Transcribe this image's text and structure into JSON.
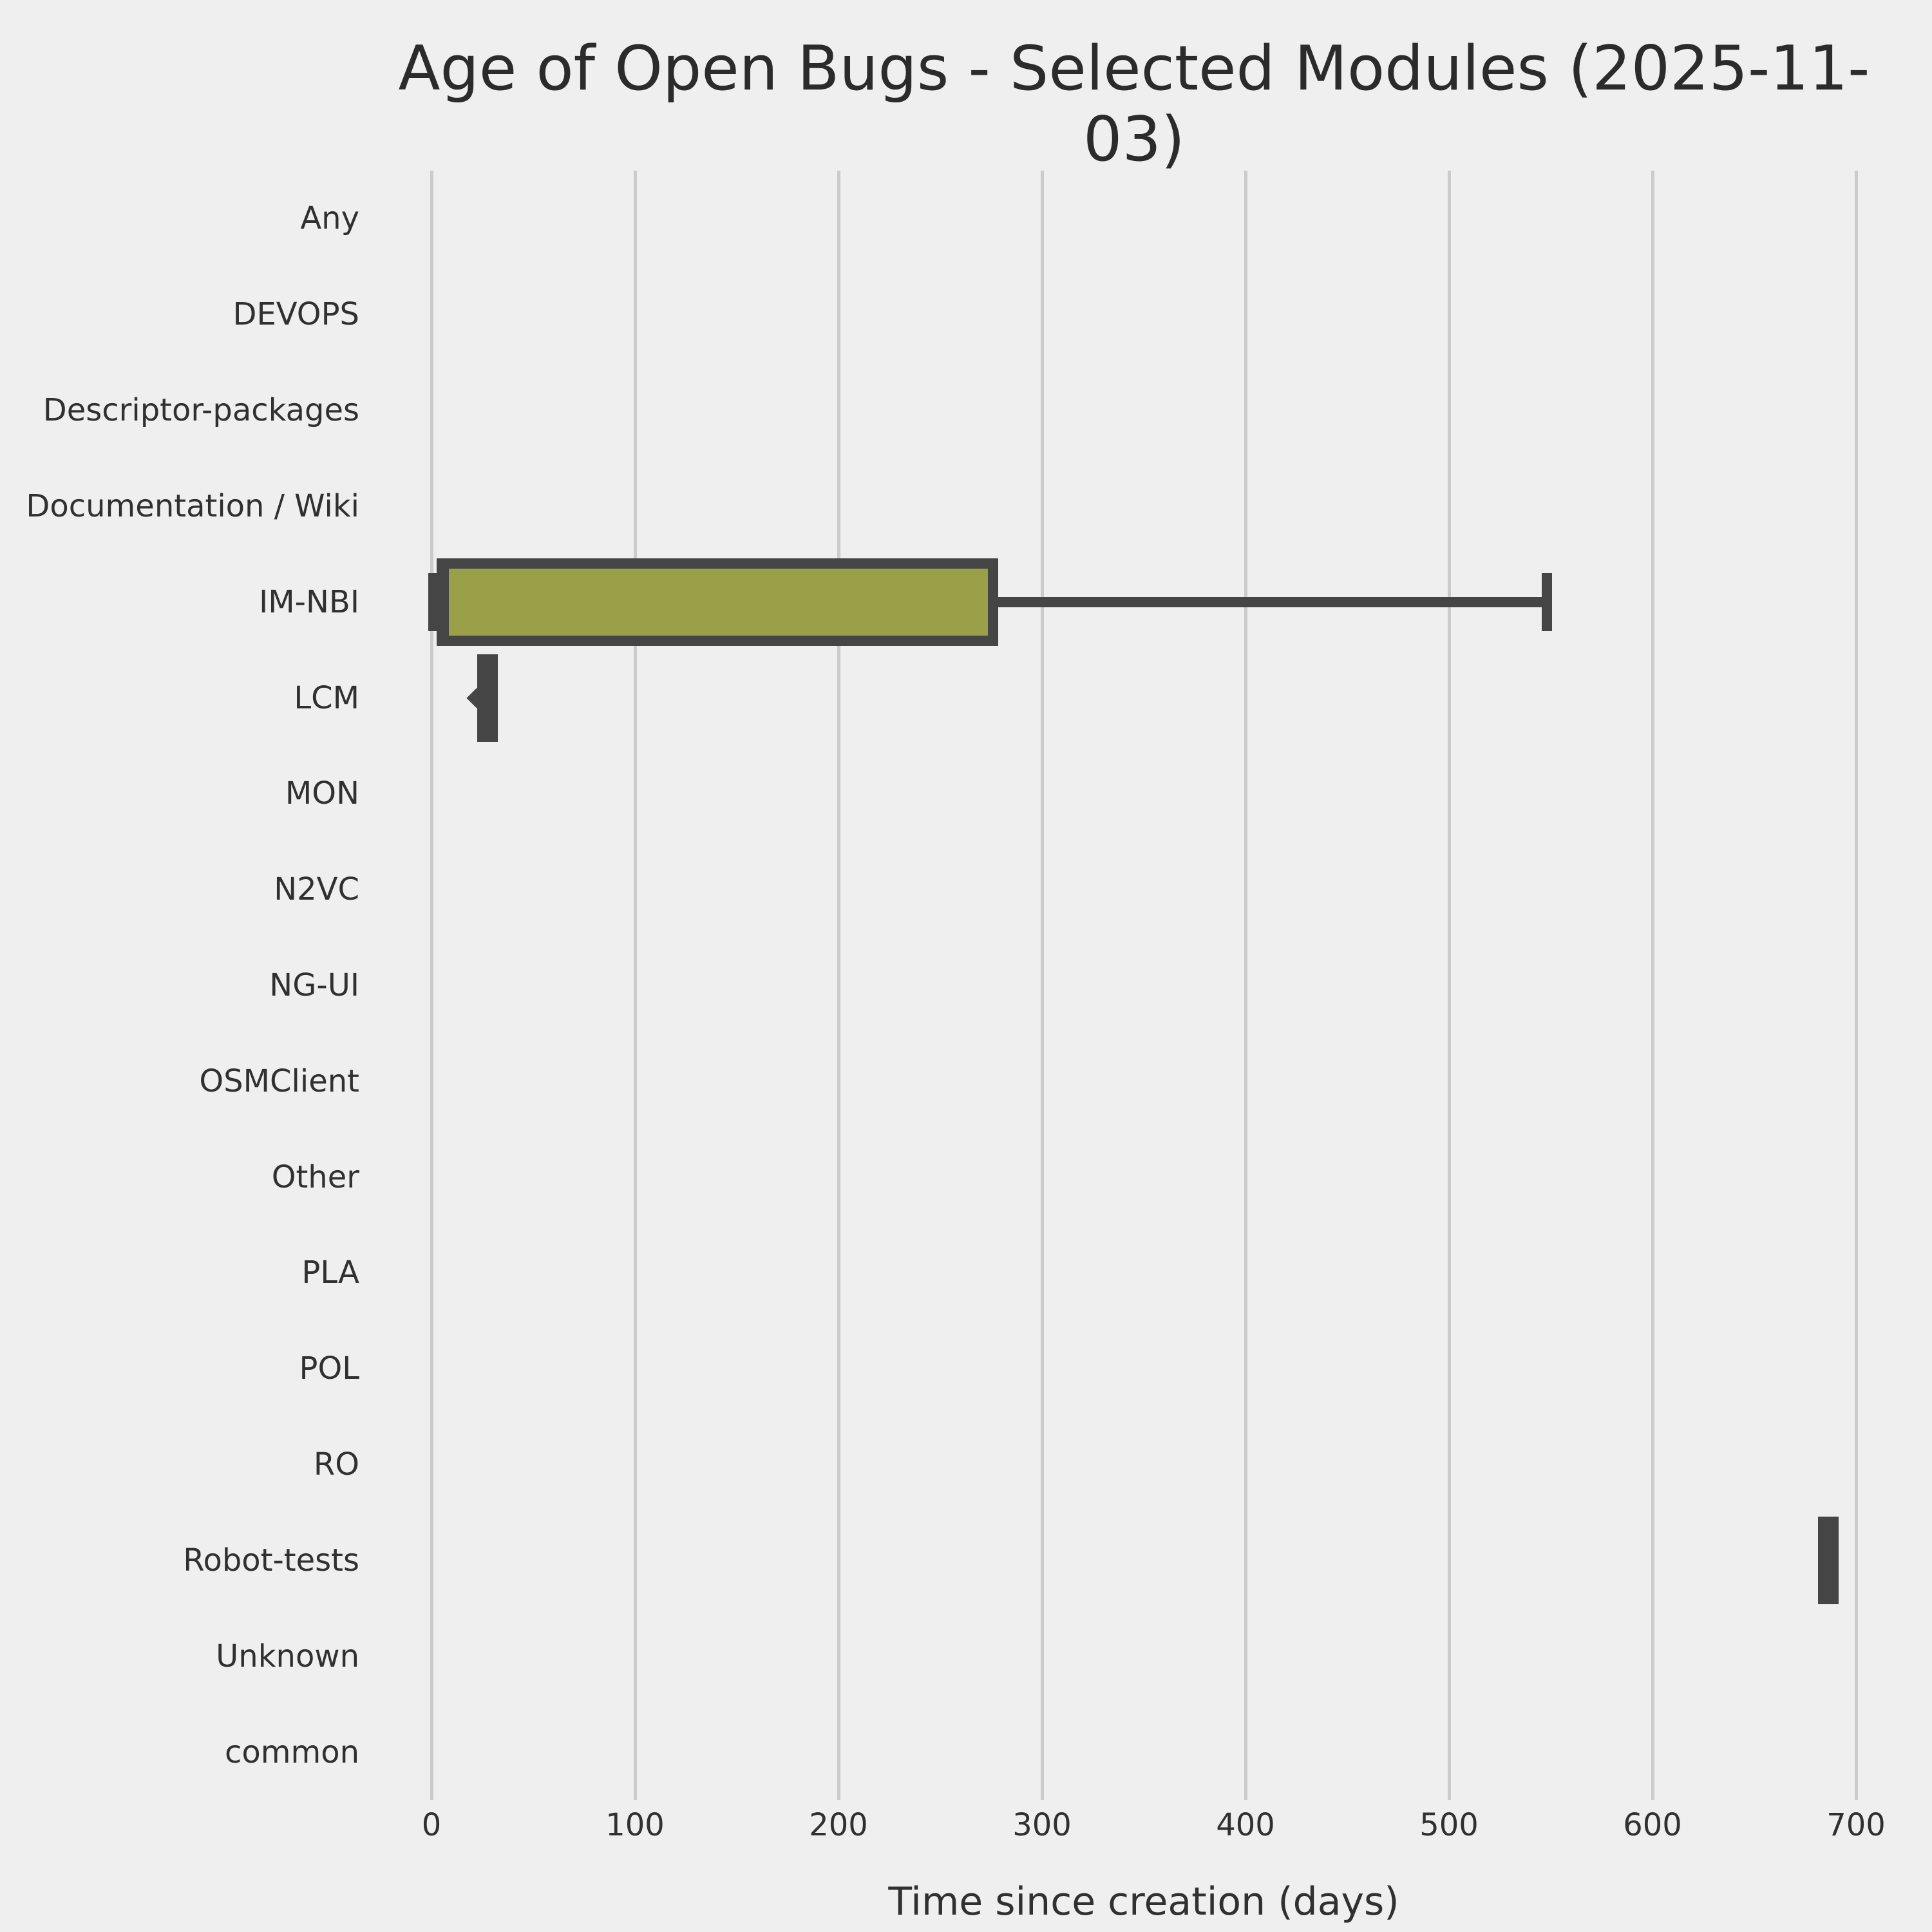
{
  "figure": {
    "title": "Age of Open Bugs - Selected Modules (2025-11-03)"
  },
  "chart_data": {
    "type": "boxplot",
    "orientation": "horizontal",
    "title": "Age of Open Bugs - Selected Modules (2025-11-03)",
    "xlabel": "Time since creation (days)",
    "ylabel": "",
    "x_ticks": [
      0,
      100,
      200,
      300,
      400,
      500,
      600,
      700
    ],
    "x_range_days": [
      -35,
      735
    ],
    "grid": "vertical-gridlines-only",
    "legend": "none",
    "categories": [
      "Any",
      "DEVOPS",
      "Descriptor-packages",
      "Documentation / Wiki",
      "IM-NBI",
      "LCM",
      "MON",
      "N2VC",
      "NG-UI",
      "OSMClient",
      "Other",
      "PLA",
      "POL",
      "RO",
      "Robot-tests",
      "Unknown",
      "common"
    ],
    "series": [
      {
        "category": "Any",
        "box": null
      },
      {
        "category": "DEVOPS",
        "box": null
      },
      {
        "category": "Descriptor-packages",
        "box": null
      },
      {
        "category": "Documentation / Wiki",
        "box": null
      },
      {
        "category": "IM-NBI",
        "box": {
          "whislo": 1,
          "q1": 5,
          "med": 6,
          "q3": 276,
          "whishi": 548,
          "fliers": []
        }
      },
      {
        "category": "LCM",
        "box": {
          "whislo": 25,
          "q1": 25,
          "med": 25,
          "q3": 25,
          "whishi": 25,
          "fliers": [
            22
          ]
        }
      },
      {
        "category": "MON",
        "box": null
      },
      {
        "category": "N2VC",
        "box": null
      },
      {
        "category": "NG-UI",
        "box": null
      },
      {
        "category": "OSMClient",
        "box": null
      },
      {
        "category": "Other",
        "box": null
      },
      {
        "category": "PLA",
        "box": null
      },
      {
        "category": "POL",
        "box": null
      },
      {
        "category": "RO",
        "box": null
      },
      {
        "category": "Robot-tests",
        "box": {
          "whislo": 684,
          "q1": 684,
          "med": 684,
          "q3": 684,
          "whishi": 684,
          "fliers": []
        }
      },
      {
        "category": "Unknown",
        "box": null
      },
      {
        "category": "common",
        "box": null
      }
    ],
    "colors": {
      "box_fill": "#99a048",
      "line": "#454545",
      "grid": "#cbcbcb",
      "background": "#efefef",
      "title_text": "#2b2b2b",
      "label_text": "#303030"
    }
  }
}
